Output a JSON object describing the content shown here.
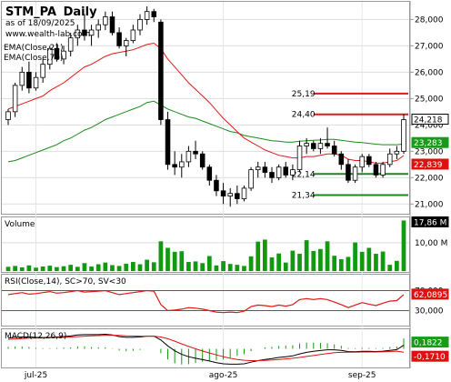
{
  "header": {
    "symbol": "STM_PA",
    "period": "Daily",
    "asof": "as of 18/09/2025",
    "site": "www.wealth-lab.com",
    "ema1": "EMA(Close,21)",
    "ema2": "EMA(Close,70)"
  },
  "colors": {
    "up": "#ffffff",
    "down": "#000000",
    "wick": "#000000",
    "ema21": "#e01818",
    "ema70": "#1a8a1a",
    "level_red": "#e01818",
    "level_green": "#1a8a1a",
    "volume": "#119911",
    "rsi": "#e01818",
    "badge_green": "#1a9a1a",
    "badge_red": "#dd1111",
    "badge_white_text": "#000000"
  },
  "price_axis": {
    "ticks": [
      "28,000",
      "27,000",
      "26,000",
      "25,000",
      "24,000",
      "23,000",
      "22,000",
      "21,000"
    ]
  },
  "volume_axis": {
    "ticks": [
      "10,00 M"
    ]
  },
  "rsi_axis": {
    "ticks": [
      "70,000",
      "30,000"
    ]
  },
  "x_axis": {
    "labels": [
      "jul-25",
      "ago-25",
      "sep-25"
    ]
  },
  "levels": [
    {
      "label": "25,19",
      "color": "red"
    },
    {
      "label": "24,40",
      "color": "red"
    },
    {
      "label": "22,14",
      "color": "green"
    },
    {
      "label": "21,34",
      "color": "green"
    }
  ],
  "badges": {
    "price": "24,218",
    "ema70": "23,283",
    "ema21": "22,839",
    "volume": "17,86 M",
    "rsi": "62,0895",
    "macd_pos": "0,1822",
    "macd_neg": "-0,1710"
  },
  "panels": {
    "volume_title": "Volume",
    "rsi_title": "RSI(Close,14), SC>70, SV<30",
    "macd_title": "MACD(12,26,9)"
  },
  "chart_data": {
    "type": "candlestick",
    "title": "STM_PA Daily",
    "price": {
      "ylim": [
        20.7,
        28.6
      ],
      "candles": [
        [
          24.2,
          24.6,
          24.0,
          24.5
        ],
        [
          24.5,
          25.6,
          24.3,
          25.5
        ],
        [
          25.5,
          26.2,
          25.3,
          26.0
        ],
        [
          26.0,
          26.4,
          25.2,
          25.4
        ],
        [
          25.4,
          26.0,
          25.3,
          25.8
        ],
        [
          25.8,
          26.5,
          25.6,
          26.3
        ],
        [
          26.3,
          27.0,
          26.1,
          26.9
        ],
        [
          26.9,
          27.1,
          26.4,
          26.5
        ],
        [
          26.5,
          27.0,
          26.3,
          26.8
        ],
        [
          26.8,
          27.5,
          26.6,
          27.3
        ],
        [
          27.3,
          27.8,
          27.0,
          27.6
        ],
        [
          27.6,
          28.2,
          27.2,
          27.4
        ],
        [
          27.4,
          27.8,
          27.0,
          27.6
        ],
        [
          27.6,
          28.0,
          27.3,
          27.8
        ],
        [
          27.8,
          28.3,
          27.6,
          28.1
        ],
        [
          28.1,
          28.3,
          27.4,
          27.5
        ],
        [
          27.5,
          27.7,
          26.9,
          27.0
        ],
        [
          27.0,
          27.3,
          26.6,
          27.2
        ],
        [
          27.2,
          27.8,
          27.1,
          27.6
        ],
        [
          27.6,
          28.2,
          27.4,
          28.0
        ],
        [
          28.0,
          28.5,
          27.8,
          28.3
        ],
        [
          28.3,
          28.4,
          27.9,
          28.1
        ],
        [
          27.9,
          28.0,
          24.0,
          24.2
        ],
        [
          24.2,
          24.5,
          22.3,
          22.5
        ],
        [
          22.5,
          23.0,
          22.1,
          22.4
        ],
        [
          22.4,
          22.9,
          22.0,
          22.6
        ],
        [
          22.6,
          23.2,
          22.4,
          23.0
        ],
        [
          23.0,
          23.4,
          22.7,
          22.9
        ],
        [
          22.9,
          23.0,
          22.3,
          22.4
        ],
        [
          22.4,
          22.5,
          21.7,
          21.9
        ],
        [
          21.9,
          22.1,
          21.3,
          21.5
        ],
        [
          21.5,
          21.8,
          21.0,
          21.3
        ],
        [
          21.3,
          21.6,
          20.9,
          21.4
        ],
        [
          21.4,
          21.7,
          21.0,
          21.2
        ],
        [
          21.2,
          21.7,
          21.1,
          21.6
        ],
        [
          21.6,
          22.4,
          21.5,
          22.3
        ],
        [
          22.3,
          22.6,
          22.0,
          22.4
        ],
        [
          22.4,
          22.6,
          22.0,
          22.2
        ],
        [
          22.2,
          22.4,
          21.8,
          22.0
        ],
        [
          22.0,
          22.5,
          21.9,
          22.4
        ],
        [
          22.4,
          22.6,
          22.0,
          22.1
        ],
        [
          22.1,
          22.5,
          21.9,
          22.3
        ],
        [
          22.3,
          23.4,
          22.2,
          23.2
        ],
        [
          23.2,
          23.5,
          22.9,
          23.3
        ],
        [
          23.3,
          23.4,
          23.0,
          23.1
        ],
        [
          23.1,
          23.5,
          22.9,
          23.3
        ],
        [
          23.3,
          23.9,
          23.1,
          23.2
        ],
        [
          23.2,
          23.4,
          22.8,
          22.9
        ],
        [
          22.9,
          23.0,
          22.3,
          22.5
        ],
        [
          22.5,
          22.7,
          21.8,
          21.9
        ],
        [
          21.9,
          22.5,
          21.8,
          22.4
        ],
        [
          22.4,
          22.9,
          22.2,
          22.8
        ],
        [
          22.8,
          22.9,
          22.4,
          22.5
        ],
        [
          22.5,
          22.6,
          22.0,
          22.1
        ],
        [
          22.1,
          22.6,
          22.0,
          22.5
        ],
        [
          22.5,
          23.1,
          22.4,
          22.9
        ],
        [
          22.9,
          23.2,
          22.7,
          23.0
        ],
        [
          23.0,
          24.4,
          22.9,
          24.2
        ]
      ],
      "ema21": [
        24.6,
        24.7,
        24.8,
        24.9,
        25.0,
        25.1,
        25.3,
        25.45,
        25.6,
        25.8,
        26.0,
        26.2,
        26.3,
        26.45,
        26.6,
        26.7,
        26.75,
        26.8,
        26.85,
        26.95,
        27.05,
        27.1,
        26.9,
        26.5,
        26.2,
        25.9,
        25.6,
        25.35,
        25.1,
        24.85,
        24.55,
        24.25,
        24.0,
        23.75,
        23.5,
        23.35,
        23.2,
        23.05,
        22.95,
        22.85,
        22.8,
        22.75,
        22.75,
        22.8,
        22.8,
        22.85,
        22.9,
        22.9,
        22.85,
        22.7,
        22.65,
        22.65,
        22.6,
        22.55,
        22.55,
        22.6,
        22.65,
        22.84
      ],
      "ema70": [
        22.6,
        22.65,
        22.75,
        22.85,
        22.95,
        23.05,
        23.15,
        23.25,
        23.4,
        23.5,
        23.65,
        23.8,
        23.9,
        24.05,
        24.2,
        24.3,
        24.4,
        24.5,
        24.6,
        24.7,
        24.85,
        24.9,
        24.75,
        24.6,
        24.5,
        24.4,
        24.3,
        24.25,
        24.15,
        24.05,
        23.95,
        23.85,
        23.75,
        23.7,
        23.6,
        23.55,
        23.5,
        23.45,
        23.4,
        23.38,
        23.35,
        23.35,
        23.38,
        23.4,
        23.42,
        23.43,
        23.45,
        23.45,
        23.42,
        23.38,
        23.35,
        23.33,
        23.3,
        23.27,
        23.25,
        23.25,
        23.25,
        23.28
      ],
      "levels": [
        25.19,
        24.4,
        22.14,
        21.34
      ]
    },
    "volume": {
      "ylim": [
        0,
        18
      ],
      "values": [
        1.5,
        1.8,
        1.3,
        2.0,
        1.2,
        1.6,
        1.9,
        1.4,
        1.7,
        2.2,
        1.5,
        2.8,
        1.6,
        2.4,
        3.0,
        2.1,
        1.8,
        2.6,
        3.2,
        2.4,
        4.0,
        3.1,
        10.5,
        8.2,
        6.8,
        7.0,
        3.2,
        3.4,
        2.8,
        5.3,
        2.0,
        3.5,
        2.5,
        2.2,
        1.8,
        5.2,
        10.4,
        11.1,
        4.8,
        6.2,
        3.0,
        7.2,
        6.1,
        10.9,
        7.1,
        7.8,
        10.5,
        5.4,
        4.2,
        5.0,
        10.1,
        6.8,
        8.2,
        6.1,
        6.9,
        2.2,
        3.6,
        17.86
      ]
    },
    "rsi": {
      "ylim": [
        0,
        100
      ],
      "thresholds": [
        70,
        30
      ],
      "values": [
        62,
        64,
        66,
        63,
        64,
        66,
        68,
        65,
        66,
        68,
        70,
        67,
        68,
        69,
        70,
        66,
        62,
        64,
        66,
        68,
        70,
        69,
        42,
        30,
        31,
        33,
        36,
        35,
        33,
        30,
        27,
        26,
        27,
        26,
        29,
        38,
        41,
        40,
        38,
        41,
        39,
        42,
        52,
        54,
        52,
        54,
        52,
        47,
        42,
        36,
        41,
        46,
        43,
        40,
        45,
        49,
        50,
        62.09
      ]
    },
    "macd": {
      "ylim": [
        -0.9,
        0.9
      ],
      "macd": [
        0.55,
        0.58,
        0.6,
        0.6,
        0.58,
        0.57,
        0.58,
        0.6,
        0.62,
        0.65,
        0.7,
        0.72,
        0.72,
        0.72,
        0.74,
        0.7,
        0.62,
        0.58,
        0.58,
        0.6,
        0.64,
        0.64,
        0.45,
        0.15,
        -0.1,
        -0.28,
        -0.4,
        -0.48,
        -0.55,
        -0.62,
        -0.7,
        -0.76,
        -0.78,
        -0.78,
        -0.76,
        -0.68,
        -0.6,
        -0.54,
        -0.5,
        -0.44,
        -0.4,
        -0.36,
        -0.26,
        -0.18,
        -0.13,
        -0.09,
        -0.05,
        -0.05,
        -0.08,
        -0.14,
        -0.15,
        -0.13,
        -0.13,
        -0.14,
        -0.12,
        -0.08,
        -0.04,
        0.18
      ],
      "signal": [
        0.48,
        0.5,
        0.52,
        0.54,
        0.55,
        0.55,
        0.56,
        0.57,
        0.58,
        0.6,
        0.62,
        0.64,
        0.66,
        0.67,
        0.69,
        0.69,
        0.68,
        0.66,
        0.65,
        0.64,
        0.64,
        0.64,
        0.6,
        0.51,
        0.39,
        0.25,
        0.12,
        0.0,
        -0.11,
        -0.21,
        -0.31,
        -0.4,
        -0.48,
        -0.54,
        -0.58,
        -0.6,
        -0.6,
        -0.59,
        -0.57,
        -0.54,
        -0.51,
        -0.48,
        -0.44,
        -0.39,
        -0.34,
        -0.29,
        -0.24,
        -0.2,
        -0.18,
        -0.17,
        -0.17,
        -0.16,
        -0.16,
        -0.16,
        -0.15,
        -0.14,
        -0.12,
        -0.17
      ]
    }
  }
}
